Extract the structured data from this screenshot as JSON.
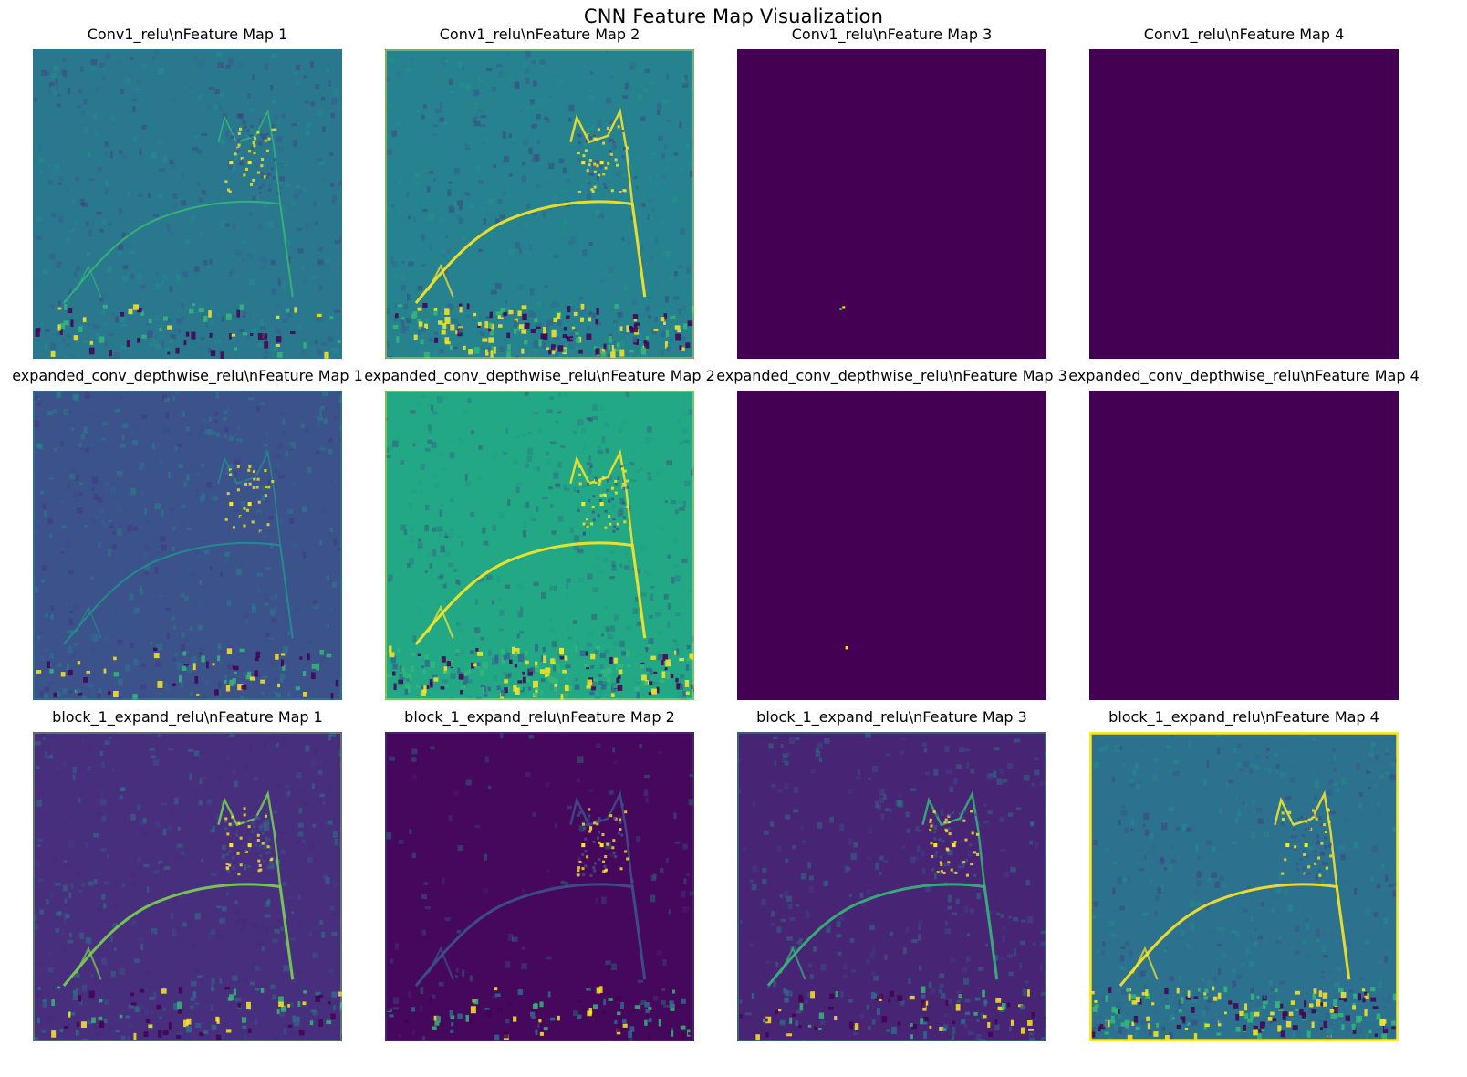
{
  "figure": {
    "title": "CNN Feature Map Visualization"
  },
  "panels": [
    {
      "title": "Conv1_relu\\nFeature Map 1",
      "style": "teal-low",
      "colors": {
        "bg": "#2a788e",
        "edge": "#35b779"
      }
    },
    {
      "title": "Conv1_relu\\nFeature Map 2",
      "style": "teal-edges",
      "colors": {
        "bg": "#26828e",
        "edge": "#fde725"
      }
    },
    {
      "title": "Conv1_relu\\nFeature Map 3",
      "style": "dark",
      "colors": {
        "bg": "#440154"
      }
    },
    {
      "title": "Conv1_relu\\nFeature Map 4",
      "style": "dark",
      "colors": {
        "bg": "#440154"
      }
    },
    {
      "title": "expanded_conv_depthwise_relu\\nFeature Map 1",
      "style": "blue-low",
      "colors": {
        "bg": "#3b528b",
        "edge": "#21918c"
      }
    },
    {
      "title": "expanded_conv_depthwise_relu\\nFeature Map 2",
      "style": "green-edges",
      "colors": {
        "bg": "#22a884",
        "edge": "#fde725"
      }
    },
    {
      "title": "expanded_conv_depthwise_relu\\nFeature Map 3",
      "style": "dark",
      "colors": {
        "bg": "#440154"
      }
    },
    {
      "title": "expanded_conv_depthwise_relu\\nFeature Map 4",
      "style": "dark",
      "colors": {
        "bg": "#440154"
      }
    },
    {
      "title": "block_1_expand_relu\\nFeature Map 1",
      "style": "purple-bright",
      "colors": {
        "bg": "#472f7d",
        "edge": "#7ad151"
      }
    },
    {
      "title": "block_1_expand_relu\\nFeature Map 2",
      "style": "very-dark",
      "colors": {
        "bg": "#46085c",
        "edge": "#3b528b"
      }
    },
    {
      "title": "block_1_expand_relu\\nFeature Map 3",
      "style": "purple-mid",
      "colors": {
        "bg": "#482475",
        "edge": "#35b779"
      }
    },
    {
      "title": "block_1_expand_relu\\nFeature Map 4",
      "style": "teal-noisy",
      "colors": {
        "bg": "#2c728e",
        "edge": "#fde725"
      }
    }
  ],
  "colormap": "viridis"
}
